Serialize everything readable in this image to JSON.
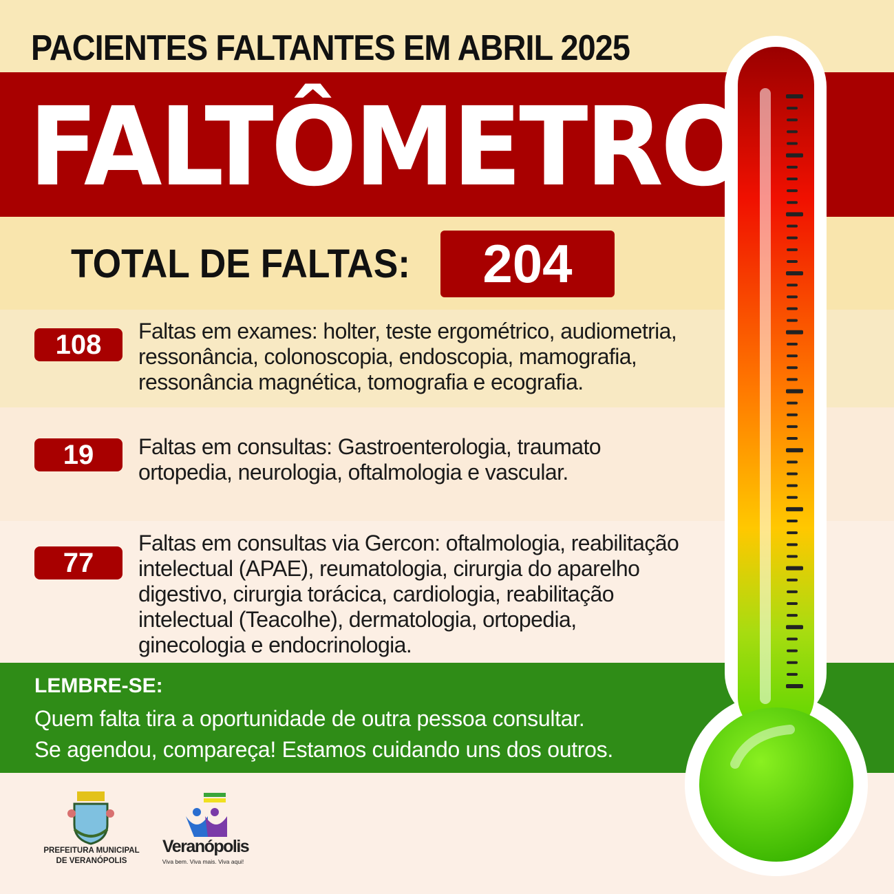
{
  "header": {
    "subtitle": "PACIENTES FALTANTES EM ABRIL 2025",
    "title": "FALTÔMETRO"
  },
  "total": {
    "label": "TOTAL DE FALTAS:",
    "value": "204"
  },
  "items": [
    {
      "count": "108",
      "lines": [
        "Faltas em exames: holter, teste ergométrico, audiometria,",
        "ressonância, colonoscopia, endoscopia, mamografia,",
        "ressonância magnética, tomografia e ecografia."
      ]
    },
    {
      "count": "19",
      "lines": [
        "Faltas em consultas: Gastroenterologia, traumato",
        "ortopedia, neurologia, oftalmologia e vascular."
      ]
    },
    {
      "count": "77",
      "lines": [
        "Faltas em consultas via Gercon: oftalmologia, reabilitação",
        "intelectual (APAE), reumatologia, cirurgia do aparelho",
        "digestivo, cirurgia torácica, cardiologia, reabilitação",
        "intelectual (Teacolhe), dermatologia, ortopedia,",
        "ginecologia e endocrinologia."
      ]
    }
  ],
  "reminder": {
    "heading": "LEMBRE-SE:",
    "lines": [
      "Quem falta tira a oportunidade de outra pessoa consultar.",
      "Se agendou, compareça! Estamos cuidando uns dos outros."
    ]
  },
  "footer": {
    "prefeitura": [
      "PREFEITURA MUNICIPAL",
      "DE VERANÓPOLIS"
    ],
    "brand": "Veranópolis",
    "slogan": "Viva bem. Viva mais. Viva aqui!"
  },
  "colors": {
    "red": "#a80000",
    "green": "#2f8c17",
    "cream": "#f9e8b8"
  },
  "icons": {
    "thermometer": "thermometer-icon",
    "coat_of_arms": "coat-of-arms-logo",
    "brand_logo": "people-flag-logo"
  }
}
